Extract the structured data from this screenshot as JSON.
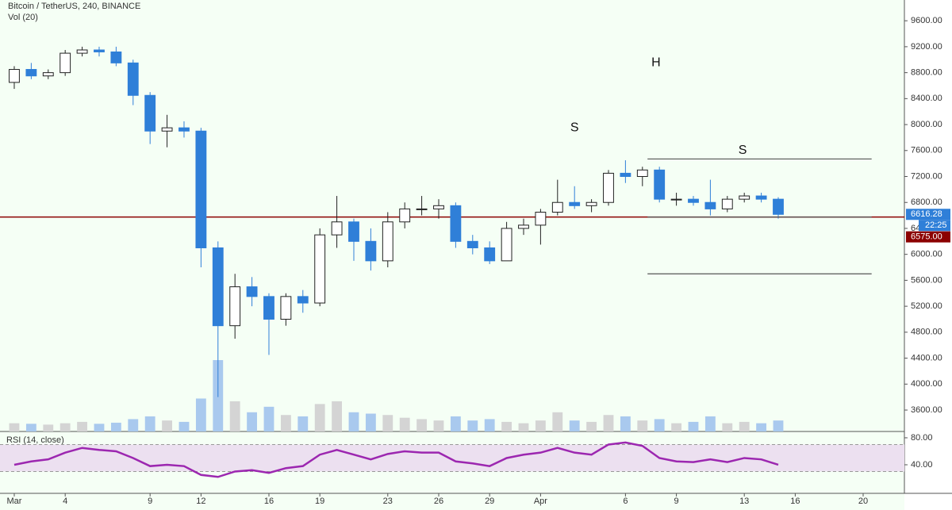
{
  "chart_data": {
    "type": "candlestick",
    "title": "Bitcoin / TetherUS, 240, BINANCE",
    "subtitle": "Vol (20)",
    "x": [
      0,
      1,
      2,
      3,
      4,
      5,
      6,
      7,
      8,
      9,
      10,
      11,
      12,
      13,
      14,
      15,
      16,
      17,
      18,
      19,
      20,
      21,
      22,
      23,
      24,
      25,
      26,
      27,
      28,
      29,
      30,
      31,
      32,
      33,
      34,
      35,
      36,
      37,
      38,
      39,
      40,
      41,
      42,
      43,
      44,
      45
    ],
    "open": [
      8650,
      8850,
      8750,
      8800,
      9100,
      9150,
      9120,
      8950,
      8450,
      7900,
      7950,
      7900,
      6100,
      4900,
      5500,
      5350,
      5000,
      5350,
      5250,
      6300,
      6500,
      6200,
      5900,
      6500,
      6700,
      6700,
      6750,
      6200,
      6100,
      5900,
      6400,
      6450,
      6650,
      6800,
      6750,
      6800,
      7250,
      7200,
      7300,
      6850,
      6850,
      6800,
      6700,
      6850,
      6900,
      6850
    ],
    "high": [
      8900,
      8950,
      8850,
      9150,
      9200,
      9200,
      9200,
      9000,
      8500,
      8150,
      8050,
      7950,
      6200,
      5700,
      5650,
      5400,
      5400,
      5450,
      6400,
      6900,
      6550,
      6400,
      6650,
      6800,
      6900,
      6850,
      6800,
      6300,
      6200,
      6500,
      6550,
      6700,
      7150,
      7050,
      6850,
      7300,
      7450,
      7350,
      7350,
      6950,
      6900,
      7150,
      6900,
      6950,
      6950,
      6880
    ],
    "low": [
      8550,
      8700,
      8700,
      8750,
      9050,
      9050,
      8900,
      8300,
      7700,
      7650,
      7800,
      5800,
      3800,
      4700,
      5200,
      4450,
      4900,
      5100,
      5200,
      6100,
      5900,
      5750,
      5800,
      6400,
      6600,
      6550,
      6100,
      6000,
      5850,
      5900,
      6300,
      6150,
      6600,
      6700,
      6650,
      6750,
      7100,
      7050,
      6800,
      6750,
      6750,
      6600,
      6650,
      6800,
      6800,
      6550
    ],
    "close": [
      8850,
      8750,
      8800,
      9100,
      9150,
      9120,
      8950,
      8450,
      7900,
      7950,
      7900,
      6100,
      4900,
      5500,
      5350,
      5000,
      5350,
      5250,
      6300,
      6500,
      6200,
      5900,
      6500,
      6700,
      6700,
      6750,
      6200,
      6100,
      5900,
      6400,
      6450,
      6650,
      6800,
      6750,
      6800,
      7250,
      7200,
      7300,
      6850,
      6850,
      6800,
      6700,
      6850,
      6900,
      6850,
      6616.28
    ],
    "volume": [
      30,
      28,
      25,
      30,
      35,
      28,
      32,
      45,
      55,
      40,
      35,
      120,
      260,
      110,
      70,
      90,
      60,
      55,
      100,
      110,
      70,
      65,
      60,
      50,
      45,
      40,
      55,
      40,
      45,
      35,
      30,
      40,
      70,
      40,
      35,
      60,
      55,
      40,
      45,
      30,
      35,
      55,
      30,
      35,
      30,
      40
    ],
    "up_color": "#ffffff",
    "down_color": "#2f7fd8",
    "volume_up_color": "#d4d4d4",
    "volume_down_color": "#a9c9ee",
    "xlim": [
      -0.84,
      52.43
    ],
    "xticks": [
      {
        "value": 0,
        "label": "Mar"
      },
      {
        "value": 3,
        "label": "4"
      },
      {
        "value": 8,
        "label": "9"
      },
      {
        "value": 11,
        "label": "12"
      },
      {
        "value": 15,
        "label": "16"
      },
      {
        "value": 18,
        "label": "19"
      },
      {
        "value": 22,
        "label": "23"
      },
      {
        "value": 25,
        "label": "26"
      },
      {
        "value": 28,
        "label": "29"
      },
      {
        "value": 31,
        "label": "Apr"
      },
      {
        "value": 36,
        "label": "6"
      },
      {
        "value": 39,
        "label": "9"
      },
      {
        "value": 43,
        "label": "13"
      },
      {
        "value": 46,
        "label": "16"
      },
      {
        "value": 50,
        "label": "20"
      }
    ],
    "ylim": [
      3270,
      9920
    ],
    "yticks": [
      {
        "value": 3600,
        "label": "3600.00"
      },
      {
        "value": 4000,
        "label": "4000.00"
      },
      {
        "value": 4400,
        "label": "4400.00"
      },
      {
        "value": 4800,
        "label": "4800.00"
      },
      {
        "value": 5200,
        "label": "5200.00"
      },
      {
        "value": 5600,
        "label": "5600.00"
      },
      {
        "value": 6000,
        "label": "6000.00"
      },
      {
        "value": 6400,
        "label": "6400.00"
      },
      {
        "value": 6800,
        "label": "6800.00"
      },
      {
        "value": 7200,
        "label": "7200.00"
      },
      {
        "value": 7600,
        "label": "7600.00"
      },
      {
        "value": 8000,
        "label": "8000.00"
      },
      {
        "value": 8400,
        "label": "8400.00"
      },
      {
        "value": 8800,
        "label": "8800.00"
      },
      {
        "value": 9200,
        "label": "9200.00"
      },
      {
        "value": 9600,
        "label": "9600.00"
      }
    ],
    "last_price": {
      "value": 6616.28,
      "label": "6616.28",
      "color": "#2f7fd8"
    },
    "countdown": "22:25",
    "level": {
      "value": 6575,
      "label": "6575.00",
      "color": "#8b0000"
    },
    "trend_lines": [
      {
        "y": 7470,
        "x": [
          37.3,
          50.5
        ]
      },
      {
        "y": 6575,
        "x": [
          37.3,
          50.5
        ]
      },
      {
        "y": 5700,
        "x": [
          37.3,
          50.5
        ]
      }
    ],
    "annotations": [
      {
        "text": "S",
        "x": 33,
        "y": 7950
      },
      {
        "text": "H",
        "x": 37.8,
        "y": 8950
      },
      {
        "text": "S",
        "x": 42.9,
        "y": 7600
      }
    ],
    "rsi": {
      "title": "RSI (14, close)",
      "color": "#9c27b0",
      "values": [
        40,
        45,
        48,
        58,
        65,
        62,
        60,
        50,
        38,
        40,
        38,
        25,
        22,
        30,
        32,
        28,
        35,
        38,
        55,
        62,
        55,
        48,
        56,
        60,
        58,
        58,
        45,
        42,
        38,
        50,
        55,
        58,
        65,
        58,
        55,
        70,
        73,
        68,
        50,
        45,
        44,
        48,
        44,
        50,
        48,
        40
      ],
      "ylim": [
        0,
        87
      ],
      "yticks": [
        {
          "value": 80,
          "label": "80.00"
        },
        {
          "value": 40,
          "label": "40.00"
        }
      ],
      "band": [
        30,
        70
      ]
    }
  }
}
